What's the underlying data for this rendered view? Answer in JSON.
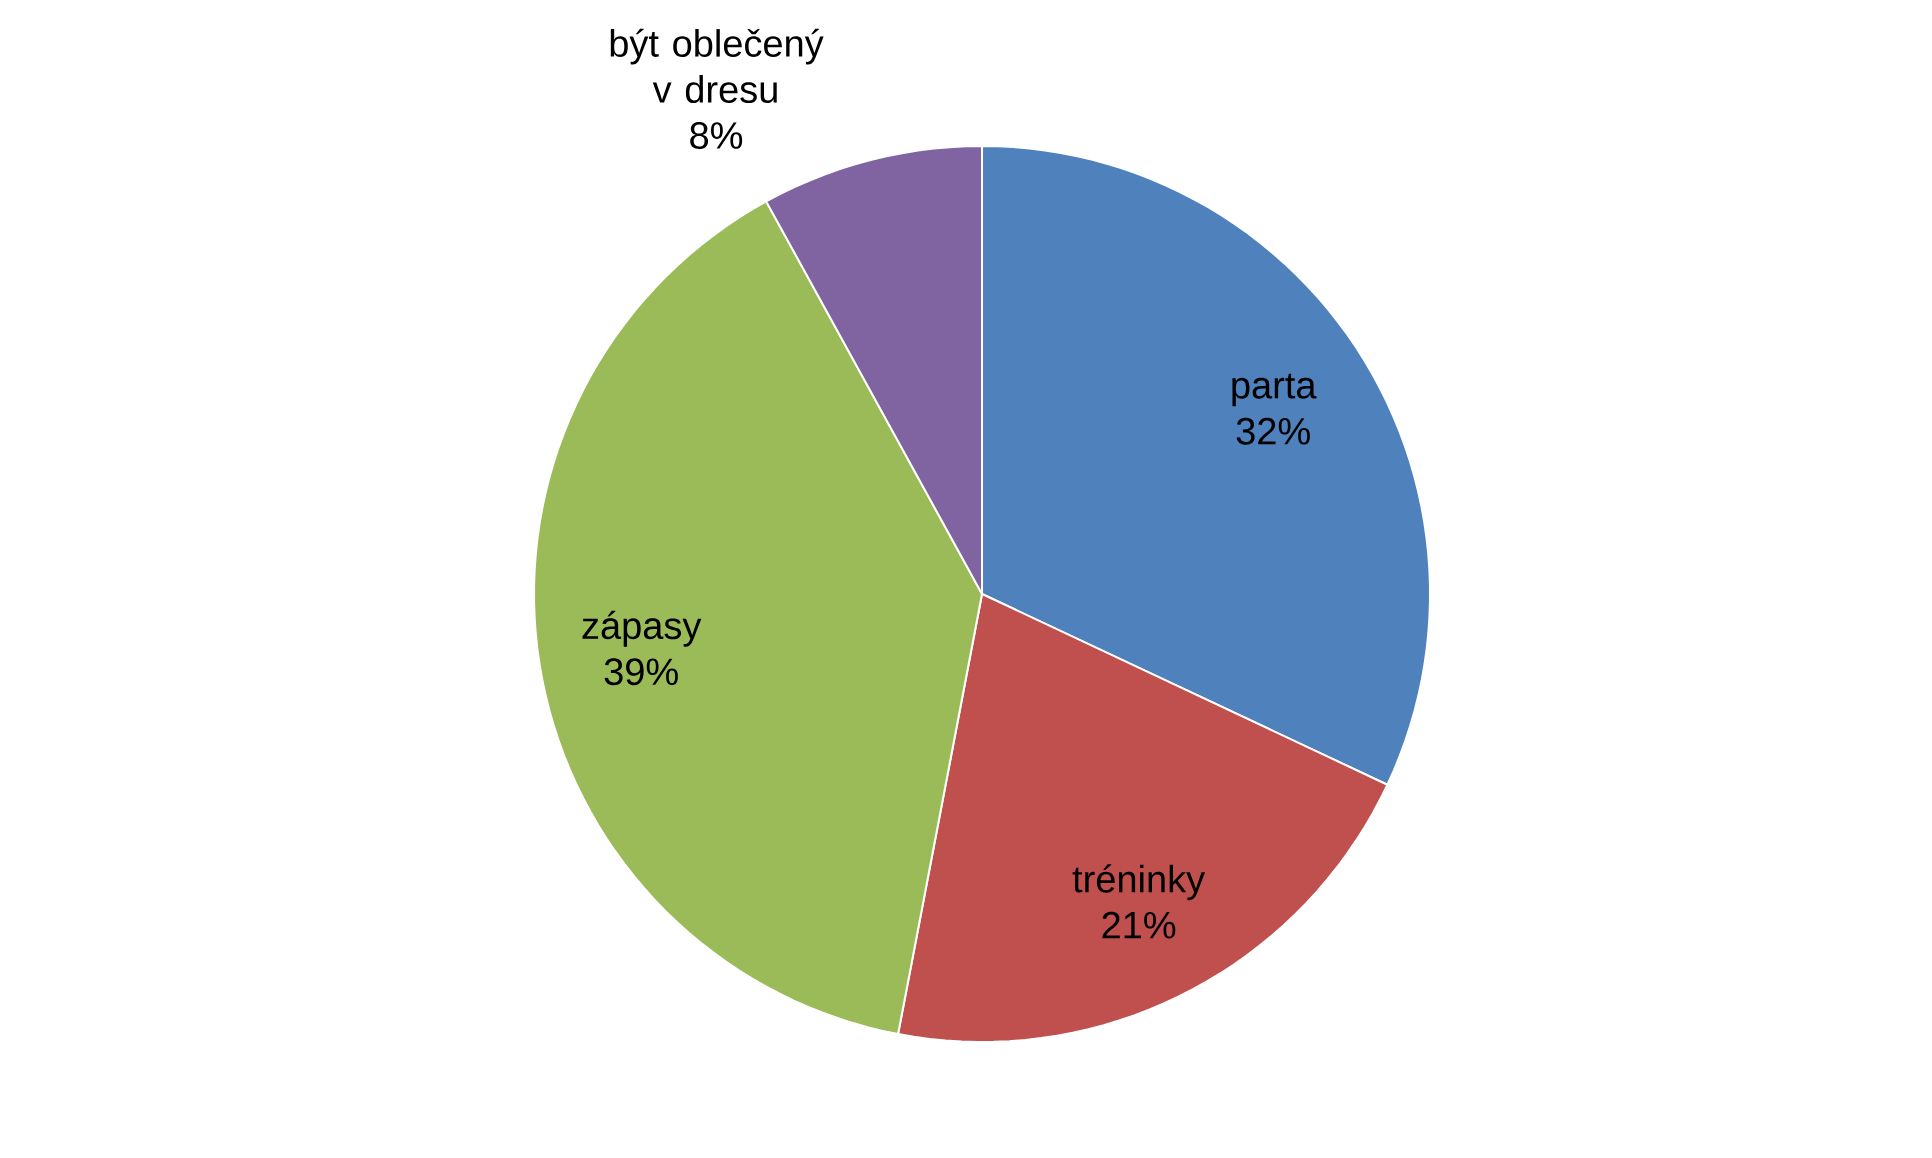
{
  "chart_data": {
    "type": "pie",
    "categories": [
      "parta",
      "tréninky",
      "zápasy",
      "být oblečený v dresu"
    ],
    "values": [
      32,
      21,
      39,
      8
    ],
    "colors": [
      "#4f81bd",
      "#c0504d",
      "#9bbb59",
      "#8064a2"
    ],
    "value_labels": [
      "32%",
      "21%",
      "39%",
      "8%"
    ]
  }
}
